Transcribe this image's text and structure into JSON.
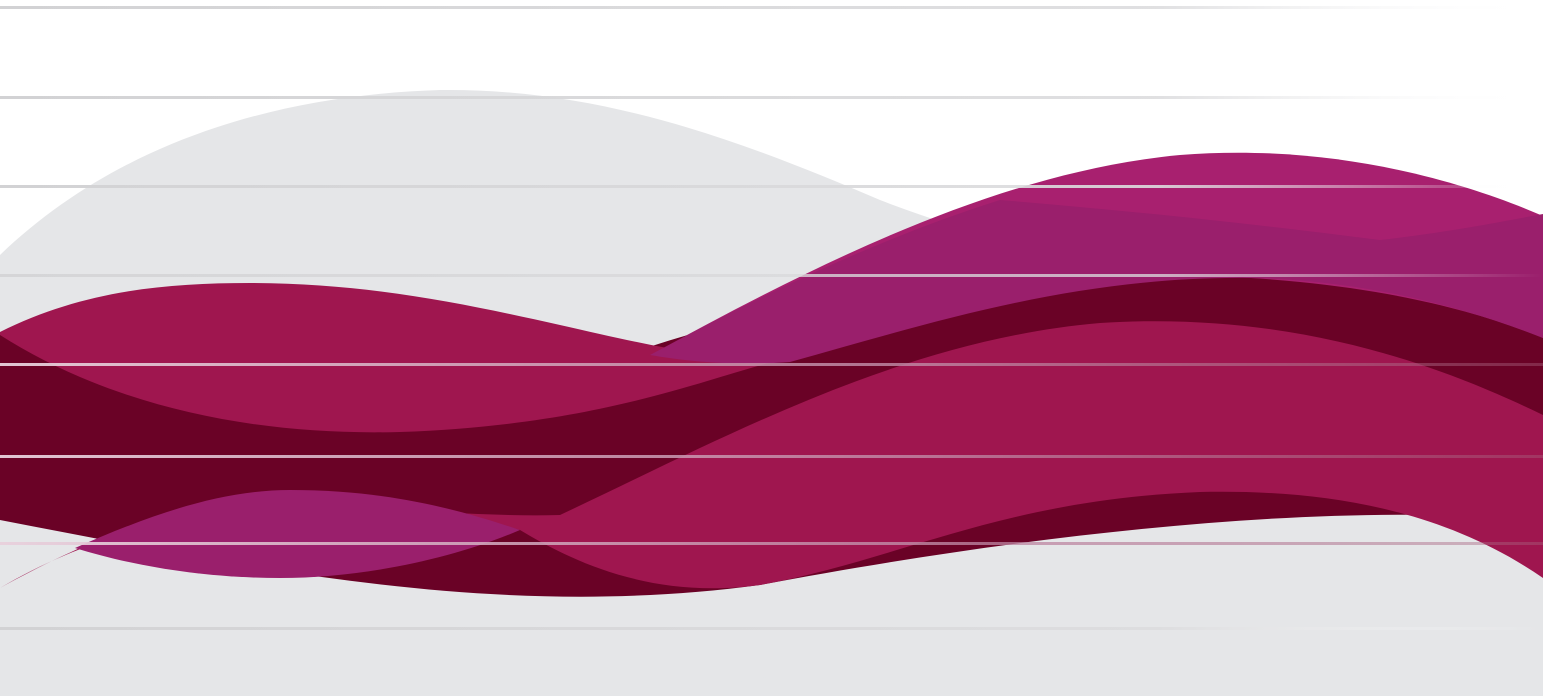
{
  "artwork": {
    "description": "",
    "palette": {
      "background": "#ffffff",
      "grey_wave": "#e5e6e8",
      "magenta_wave": "#a8206f",
      "purple_overlap": "#9a1f6c",
      "crimson_wave": "#9f164f",
      "maroon_band": "#6a0226",
      "stripe_light": "#d7d7d9",
      "stripe_on_dark": "#c9a3b6"
    },
    "stripe_count": 8,
    "shapes": [
      "grey-wave-back",
      "magenta-wave-top",
      "maroon-band",
      "crimson-wave-upper",
      "purple-overlap-upper",
      "crimson-wave-lower",
      "purple-overlap-lower",
      "grey-wave-bottom"
    ]
  }
}
